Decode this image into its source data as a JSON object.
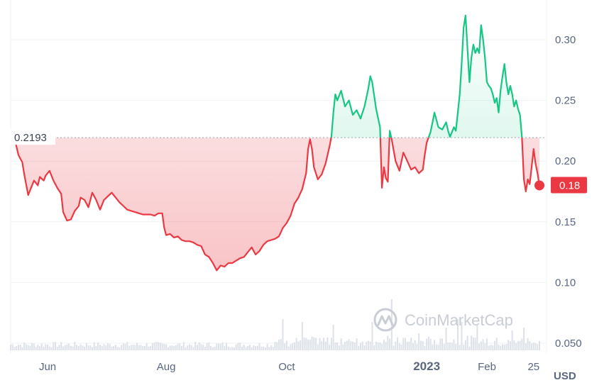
{
  "colors": {
    "up": "#16c784",
    "down": "#ea3943",
    "grid": "#eff2f5",
    "volume": "#dde1e8",
    "text": "#58667e",
    "watermark": "#c9cdd6"
  },
  "watermark": "CoinMarketCap",
  "chart_data": {
    "type": "line",
    "currency_label": "USD",
    "reference_value": 0.2193,
    "reference_label": "0.2193",
    "current_value": 0.18,
    "current_label": "0.18",
    "ylim": [
      0.05,
      0.325
    ],
    "yticks": [
      0.05,
      0.1,
      0.15,
      0.2,
      0.25,
      0.3
    ],
    "ytick_labels": [
      "0.050",
      "0.10",
      "0.15",
      "0.20",
      "0.25",
      "0.30"
    ],
    "xlim": [
      0,
      272
    ],
    "xticks": [
      {
        "x": 19,
        "label": "Jun",
        "bold": false
      },
      {
        "x": 80,
        "label": "Aug",
        "bold": false
      },
      {
        "x": 142,
        "label": "Oct",
        "bold": false
      },
      {
        "x": 214,
        "label": "2023",
        "bold": true
      },
      {
        "x": 245,
        "label": "Feb",
        "bold": false
      },
      {
        "x": 269,
        "label": "25",
        "bold": false
      }
    ],
    "grid": true,
    "legend": "none",
    "series": [
      {
        "values": [
          [
            0,
            0.219
          ],
          [
            1,
            0.225
          ],
          [
            2,
            0.218
          ],
          [
            3,
            0.212
          ],
          [
            4,
            0.205
          ],
          [
            6,
            0.199
          ],
          [
            7,
            0.189
          ],
          [
            9,
            0.172
          ],
          [
            10,
            0.176
          ],
          [
            12,
            0.184
          ],
          [
            14,
            0.18
          ],
          [
            15,
            0.187
          ],
          [
            17,
            0.184
          ],
          [
            18,
            0.188
          ],
          [
            20,
            0.192
          ],
          [
            22,
            0.184
          ],
          [
            24,
            0.178
          ],
          [
            26,
            0.173
          ],
          [
            27,
            0.158
          ],
          [
            29,
            0.151
          ],
          [
            31,
            0.152
          ],
          [
            33,
            0.159
          ],
          [
            35,
            0.163
          ],
          [
            36,
            0.17
          ],
          [
            38,
            0.168
          ],
          [
            40,
            0.162
          ],
          [
            42,
            0.174
          ],
          [
            44,
            0.168
          ],
          [
            46,
            0.16
          ],
          [
            48,
            0.168
          ],
          [
            50,
            0.171
          ],
          [
            52,
            0.174
          ],
          [
            54,
            0.17
          ],
          [
            56,
            0.166
          ],
          [
            58,
            0.163
          ],
          [
            60,
            0.16
          ],
          [
            62,
            0.159
          ],
          [
            64,
            0.158
          ],
          [
            66,
            0.157
          ],
          [
            68,
            0.156
          ],
          [
            70,
            0.156
          ],
          [
            72,
            0.156
          ],
          [
            74,
            0.155
          ],
          [
            76,
            0.157
          ],
          [
            78,
            0.157
          ],
          [
            79,
            0.145
          ],
          [
            80,
            0.139
          ],
          [
            82,
            0.14
          ],
          [
            84,
            0.137
          ],
          [
            86,
            0.138
          ],
          [
            88,
            0.135
          ],
          [
            90,
            0.134
          ],
          [
            92,
            0.134
          ],
          [
            94,
            0.133
          ],
          [
            96,
            0.131
          ],
          [
            98,
            0.13
          ],
          [
            100,
            0.123
          ],
          [
            102,
            0.121
          ],
          [
            104,
            0.116
          ],
          [
            106,
            0.11
          ],
          [
            108,
            0.114
          ],
          [
            110,
            0.113
          ],
          [
            112,
            0.116
          ],
          [
            114,
            0.116
          ],
          [
            116,
            0.118
          ],
          [
            118,
            0.12
          ],
          [
            120,
            0.121
          ],
          [
            122,
            0.125
          ],
          [
            124,
            0.129
          ],
          [
            126,
            0.123
          ],
          [
            128,
            0.126
          ],
          [
            130,
            0.131
          ],
          [
            132,
            0.134
          ],
          [
            134,
            0.135
          ],
          [
            136,
            0.136
          ],
          [
            138,
            0.138
          ],
          [
            140,
            0.145
          ],
          [
            142,
            0.149
          ],
          [
            144,
            0.155
          ],
          [
            146,
            0.165
          ],
          [
            148,
            0.17
          ],
          [
            150,
            0.177
          ],
          [
            152,
            0.19
          ],
          [
            153,
            0.21
          ],
          [
            154,
            0.218
          ],
          [
            155,
            0.21
          ],
          [
            156,
            0.195
          ],
          [
            158,
            0.185
          ],
          [
            160,
            0.189
          ],
          [
            162,
            0.198
          ],
          [
            164,
            0.212
          ],
          [
            165,
            0.22
          ],
          [
            166,
            0.24
          ],
          [
            167,
            0.255
          ],
          [
            168,
            0.25
          ],
          [
            170,
            0.258
          ],
          [
            172,
            0.245
          ],
          [
            174,
            0.25
          ],
          [
            176,
            0.238
          ],
          [
            178,
            0.242
          ],
          [
            180,
            0.235
          ],
          [
            182,
            0.245
          ],
          [
            184,
            0.26
          ],
          [
            185,
            0.27
          ],
          [
            186,
            0.265
          ],
          [
            188,
            0.243
          ],
          [
            190,
            0.228
          ],
          [
            191,
            0.178
          ],
          [
            192,
            0.195
          ],
          [
            193,
            0.186
          ],
          [
            194,
            0.183
          ],
          [
            195,
            0.225
          ],
          [
            196,
            0.218
          ],
          [
            198,
            0.2
          ],
          [
            200,
            0.192
          ],
          [
            202,
            0.207
          ],
          [
            204,
            0.2
          ],
          [
            206,
            0.193
          ],
          [
            208,
            0.195
          ],
          [
            210,
            0.19
          ],
          [
            212,
            0.193
          ],
          [
            213,
            0.205
          ],
          [
            214,
            0.215
          ],
          [
            216,
            0.224
          ],
          [
            217,
            0.232
          ],
          [
            218,
            0.24
          ],
          [
            220,
            0.228
          ],
          [
            222,
            0.226
          ],
          [
            224,
            0.232
          ],
          [
            225,
            0.225
          ],
          [
            226,
            0.22
          ],
          [
            228,
            0.228
          ],
          [
            229,
            0.225
          ],
          [
            230,
            0.24
          ],
          [
            231,
            0.255
          ],
          [
            232,
            0.28
          ],
          [
            233,
            0.31
          ],
          [
            234,
            0.32
          ],
          [
            235,
            0.292
          ],
          [
            236,
            0.265
          ],
          [
            237,
            0.285
          ],
          [
            238,
            0.296
          ],
          [
            239,
            0.289
          ],
          [
            240,
            0.293
          ],
          [
            241,
            0.289
          ],
          [
            242,
            0.312
          ],
          [
            243,
            0.3
          ],
          [
            244,
            0.285
          ],
          [
            245,
            0.265
          ],
          [
            246,
            0.262
          ],
          [
            247,
            0.26
          ],
          [
            248,
            0.255
          ],
          [
            249,
            0.248
          ],
          [
            250,
            0.252
          ],
          [
            251,
            0.24
          ],
          [
            252,
            0.258
          ],
          [
            253,
            0.27
          ],
          [
            254,
            0.28
          ],
          [
            255,
            0.265
          ],
          [
            256,
            0.255
          ],
          [
            257,
            0.262
          ],
          [
            258,
            0.255
          ],
          [
            259,
            0.245
          ],
          [
            260,
            0.25
          ],
          [
            261,
            0.243
          ],
          [
            262,
            0.238
          ],
          [
            263,
            0.22
          ],
          [
            264,
            0.185
          ],
          [
            265,
            0.175
          ],
          [
            266,
            0.185
          ],
          [
            267,
            0.181
          ],
          [
            268,
            0.195
          ],
          [
            269,
            0.21
          ],
          [
            270,
            0.198
          ],
          [
            271,
            0.19
          ],
          [
            272,
            0.18
          ]
        ]
      }
    ],
    "volume": {
      "x_start": 0,
      "x_end": 272,
      "spikes": [
        [
          140,
          0.55
        ],
        [
          150,
          0.5
        ],
        [
          166,
          0.45
        ],
        [
          186,
          0.5
        ],
        [
          196,
          0.9
        ],
        [
          210,
          0.3
        ],
        [
          224,
          0.4
        ],
        [
          230,
          0.55
        ],
        [
          232,
          0.5
        ],
        [
          240,
          0.45
        ],
        [
          258,
          0.35
        ],
        [
          264,
          0.4
        ]
      ]
    }
  }
}
